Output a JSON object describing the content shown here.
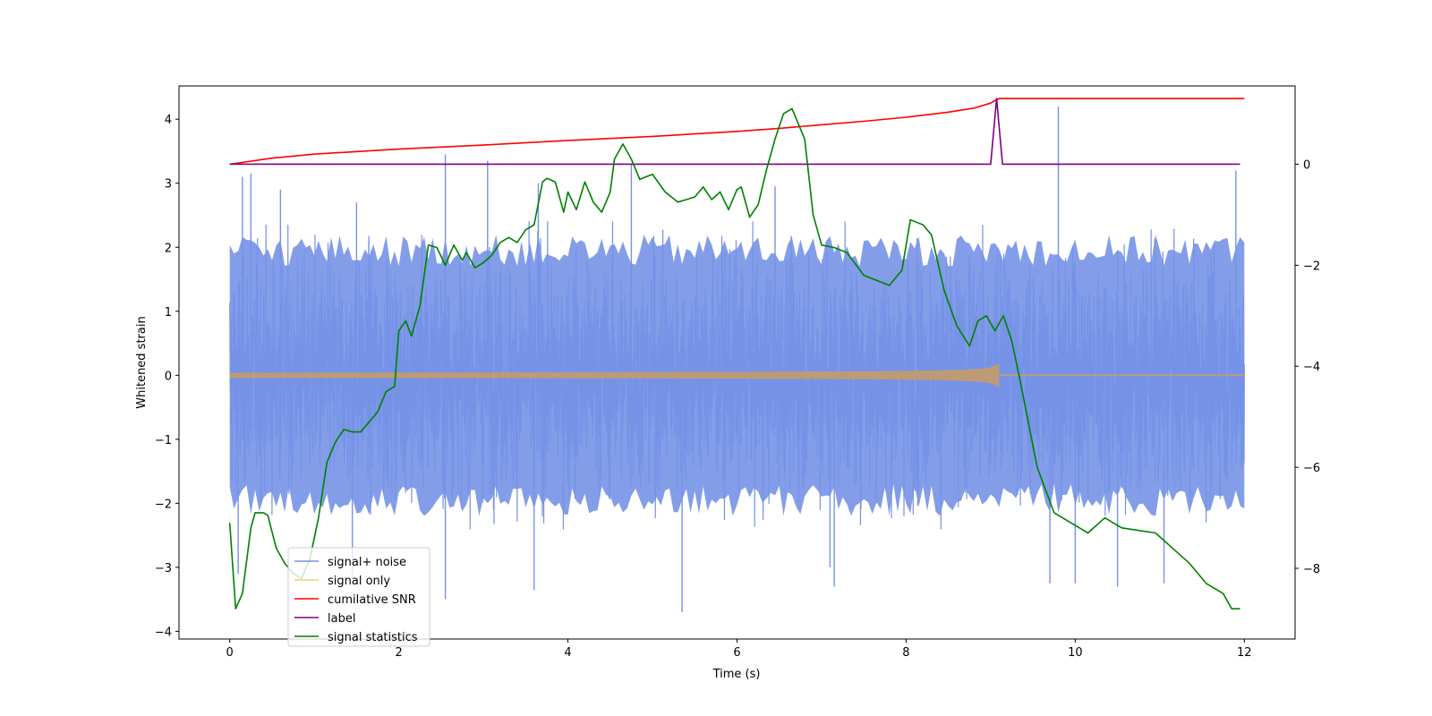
{
  "chart_data": {
    "type": "line",
    "title": "",
    "xlabel": "Time (s)",
    "ylabel": "Whitened strain",
    "y2label": "",
    "xlim": [
      -0.6,
      12.6
    ],
    "ylim": [
      -4.12,
      4.52
    ],
    "y2lim": [
      -9.4,
      1.55
    ],
    "xticks": [
      0,
      2,
      4,
      6,
      8,
      10,
      12
    ],
    "yticks": [
      -4,
      -3,
      -2,
      -1,
      0,
      1,
      2,
      3,
      4
    ],
    "y2ticks": [
      -8,
      -6,
      -4,
      -2,
      0
    ],
    "grid": false,
    "legend_position": "lower-left",
    "noise": {
      "x_range": [
        0,
        12
      ],
      "core_amplitude": 1.7,
      "spikes": [
        {
          "x": 0.15,
          "y": 3.1
        },
        {
          "x": 0.25,
          "y": 3.15
        },
        {
          "x": 0.6,
          "y": 2.9
        },
        {
          "x": 1.5,
          "y": 2.7
        },
        {
          "x": 2.55,
          "y": 3.45
        },
        {
          "x": 3.05,
          "y": 3.35
        },
        {
          "x": 3.65,
          "y": 3.0
        },
        {
          "x": 4.75,
          "y": 3.3
        },
        {
          "x": 6.45,
          "y": 2.95
        },
        {
          "x": 9.8,
          "y": 4.2
        },
        {
          "x": 11.9,
          "y": 3.2
        },
        {
          "x": 0.1,
          "y": -3.1
        },
        {
          "x": 1.45,
          "y": -3.2
        },
        {
          "x": 2.55,
          "y": -3.5
        },
        {
          "x": 3.6,
          "y": -3.35
        },
        {
          "x": 5.35,
          "y": -3.7
        },
        {
          "x": 7.1,
          "y": -3.0
        },
        {
          "x": 7.15,
          "y": -3.3
        },
        {
          "x": 9.7,
          "y": -3.25
        },
        {
          "x": 10.0,
          "y": -3.25
        },
        {
          "x": 10.5,
          "y": -3.3
        },
        {
          "x": 11.05,
          "y": -3.25
        }
      ]
    },
    "signal": {
      "x_start": 0,
      "merger_x": 9.1,
      "x_end": 12,
      "start_amplitude": 0.04,
      "peak_amplitude": 0.5
    },
    "series": [
      {
        "name": "signal+ noise",
        "color": "#7692e7",
        "axis": "left"
      },
      {
        "name": "signal only",
        "color": "#ffc875",
        "axis": "left"
      },
      {
        "name": "cumilative SNR",
        "color": "#ff0000",
        "axis": "right",
        "x": [
          0,
          0.5,
          1,
          2,
          3,
          4,
          5,
          6,
          6.5,
          7,
          7.5,
          8,
          8.5,
          8.8,
          9.0,
          9.05,
          9.1,
          12
        ],
        "y": [
          0,
          0.12,
          0.2,
          0.3,
          0.38,
          0.47,
          0.55,
          0.65,
          0.71,
          0.78,
          0.85,
          0.93,
          1.03,
          1.11,
          1.21,
          1.26,
          1.3,
          1.3
        ]
      },
      {
        "name": "label",
        "color": "#800080",
        "axis": "right",
        "x": [
          0,
          9.0,
          9.07,
          9.14,
          11.95
        ],
        "y": [
          0,
          0,
          1.3,
          0,
          0
        ]
      },
      {
        "name": "signal statistics",
        "color": "#008000",
        "axis": "right",
        "x": [
          0,
          0.07,
          0.15,
          0.25,
          0.3,
          0.4,
          0.45,
          0.55,
          0.65,
          0.75,
          0.85,
          0.95,
          1.05,
          1.15,
          1.25,
          1.35,
          1.45,
          1.55,
          1.65,
          1.75,
          1.85,
          1.95,
          2.0,
          2.08,
          2.15,
          2.25,
          2.35,
          2.45,
          2.55,
          2.65,
          2.75,
          2.8,
          2.85,
          2.9,
          3.0,
          3.1,
          3.2,
          3.3,
          3.4,
          3.5,
          3.6,
          3.7,
          3.75,
          3.85,
          3.95,
          4.0,
          4.1,
          4.2,
          4.3,
          4.4,
          4.5,
          4.55,
          4.65,
          4.75,
          4.85,
          5.0,
          5.15,
          5.3,
          5.5,
          5.6,
          5.7,
          5.8,
          5.9,
          6.0,
          6.05,
          6.15,
          6.25,
          6.35,
          6.45,
          6.55,
          6.65,
          6.7,
          6.8,
          6.9,
          7.0,
          7.15,
          7.3,
          7.5,
          7.65,
          7.8,
          7.95,
          8.05,
          8.2,
          8.3,
          8.45,
          8.6,
          8.75,
          8.85,
          8.95,
          9.05,
          9.15,
          9.25,
          9.35,
          9.55,
          9.75,
          9.95,
          10.15,
          10.35,
          10.55,
          10.75,
          10.95,
          11.15,
          11.35,
          11.55,
          11.75,
          11.85,
          11.95
        ],
        "y": [
          -7.1,
          -8.8,
          -8.5,
          -7.2,
          -6.9,
          -6.9,
          -6.95,
          -7.6,
          -7.9,
          -8.1,
          -8.2,
          -7.8,
          -7.0,
          -5.9,
          -5.5,
          -5.25,
          -5.3,
          -5.3,
          -5.1,
          -4.9,
          -4.5,
          -4.4,
          -3.3,
          -3.1,
          -3.4,
          -2.8,
          -1.6,
          -1.65,
          -2.0,
          -1.6,
          -1.9,
          -1.75,
          -1.9,
          -2.05,
          -1.95,
          -1.8,
          -1.55,
          -1.45,
          -1.55,
          -1.3,
          -1.2,
          -0.35,
          -0.28,
          -0.35,
          -0.95,
          -0.55,
          -0.9,
          -0.35,
          -0.75,
          -0.95,
          -0.55,
          0.1,
          0.4,
          0.1,
          -0.3,
          -0.2,
          -0.55,
          -0.75,
          -0.65,
          -0.45,
          -0.7,
          -0.55,
          -0.9,
          -0.5,
          -0.45,
          -1.05,
          -0.8,
          -0.1,
          0.5,
          1.0,
          1.1,
          0.9,
          0.5,
          -1.0,
          -1.6,
          -1.65,
          -1.75,
          -2.2,
          -2.3,
          -2.4,
          -2.1,
          -1.1,
          -1.2,
          -1.4,
          -2.5,
          -3.2,
          -3.6,
          -3.1,
          -3.0,
          -3.3,
          -3.0,
          -3.5,
          -4.3,
          -6.0,
          -6.9,
          -7.1,
          -7.3,
          -7.0,
          -7.2,
          -7.25,
          -7.3,
          -7.6,
          -7.9,
          -8.3,
          -8.5,
          -8.8,
          -8.8
        ]
      }
    ]
  }
}
